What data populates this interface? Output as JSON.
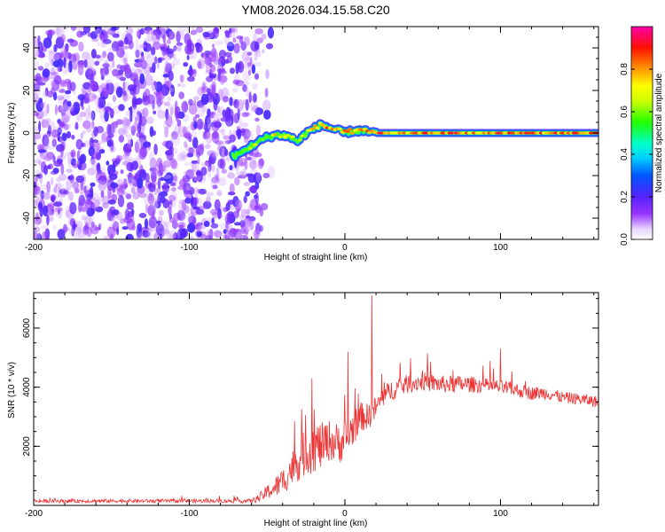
{
  "title": "YM08.2026.034.15.58.C20",
  "colorbar": {
    "label": "Normalized spectral amplitude",
    "ticks": [
      0.0,
      0.2,
      0.4,
      0.6,
      0.8
    ],
    "tick_labels": [
      "0.0",
      "0.2",
      "0.4",
      "0.6",
      "0.8"
    ],
    "range": [
      0.0,
      1.0
    ]
  },
  "chart_data": [
    {
      "type": "heatmap",
      "name": "spectrogram",
      "title": "YM08.2026.034.15.58.C20",
      "xlabel": "Height of straight line (km)",
      "ylabel": "Frequency (Hz)",
      "xlim": [
        -200,
        163
      ],
      "ylim": [
        -50,
        50
      ],
      "xticks": [
        -200,
        -100,
        0,
        100
      ],
      "xtick_labels": [
        "-200",
        "-100",
        "0",
        "100"
      ],
      "yticks": [
        -40,
        -20,
        0,
        20,
        40
      ],
      "ytick_labels": [
        "-40",
        "-20",
        "0",
        "20",
        "40"
      ],
      "noise_region_x": [
        -200,
        -55
      ],
      "noise_amplitude_range": [
        0.0,
        0.3
      ],
      "ridge": {
        "x": [
          -72,
          -68,
          -64,
          -60,
          -55,
          -50,
          -45,
          -40,
          -35,
          -30,
          -25,
          -20,
          -15,
          -12,
          -8,
          -4,
          0,
          5,
          10,
          20,
          40,
          60,
          80,
          100,
          120,
          140,
          163
        ],
        "freq": [
          -11,
          -10,
          -8,
          -6,
          -4,
          -2,
          -1,
          -1,
          -2,
          -4,
          0,
          2,
          4,
          3,
          2,
          1,
          0,
          1,
          1,
          0,
          0,
          0,
          0,
          0,
          0,
          0,
          0
        ],
        "amplitude": [
          0.5,
          0.6,
          0.6,
          0.7,
          0.7,
          0.75,
          0.8,
          0.8,
          0.7,
          0.75,
          0.8,
          0.85,
          0.9,
          0.9,
          0.9,
          0.9,
          0.95,
          0.95,
          0.95,
          0.95,
          0.95,
          0.95,
          0.95,
          0.95,
          0.95,
          0.95,
          0.95
        ]
      }
    },
    {
      "type": "line",
      "name": "snr",
      "xlabel": "Height of straight line (km)",
      "ylabel": "SNR (10 * v/v)",
      "xlim": [
        -200,
        163
      ],
      "ylim": [
        0,
        7200
      ],
      "xticks": [
        -200,
        -100,
        0,
        100
      ],
      "xtick_labels": [
        "-200",
        "-100",
        "0",
        "100"
      ],
      "yticks": [
        2000,
        4000,
        6000
      ],
      "ytick_labels": [
        "2000",
        "4000",
        "6000"
      ],
      "color": "#ee3333",
      "series": [
        {
          "name": "SNR",
          "x": [
            -200,
            -150,
            -100,
            -60,
            -55,
            -50,
            -45,
            -40,
            -35,
            -30,
            -25,
            -20,
            -15,
            -10,
            -5,
            0,
            5,
            10,
            15,
            20,
            25,
            30,
            40,
            50,
            60,
            70,
            80,
            90,
            100,
            110,
            120,
            130,
            140,
            150,
            163
          ],
          "y": [
            150,
            150,
            150,
            150,
            250,
            450,
            600,
            800,
            1200,
            1500,
            1800,
            2000,
            2000,
            2200,
            2100,
            2200,
            2600,
            3000,
            3000,
            3300,
            3700,
            3900,
            4100,
            4200,
            4100,
            4100,
            4100,
            4050,
            4000,
            3900,
            3800,
            3800,
            3650,
            3600,
            3500
          ],
          "spread": [
            60,
            60,
            60,
            70,
            150,
            250,
            350,
            450,
            600,
            700,
            800,
            900,
            800,
            700,
            700,
            700,
            600,
            500,
            450,
            400,
            350,
            350,
            320,
            320,
            300,
            300,
            280,
            260,
            250,
            240,
            230,
            220,
            200,
            200,
            200
          ]
        }
      ],
      "spikes": [
        {
          "x": 17.5,
          "y": 7100
        },
        {
          "x": -21,
          "y": 4300
        },
        {
          "x": 2,
          "y": 5200
        },
        {
          "x": 100,
          "y": 5300
        }
      ]
    }
  ]
}
